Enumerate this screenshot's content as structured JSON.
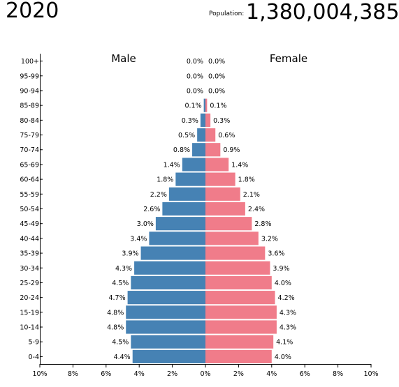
{
  "header": {
    "year": "2020",
    "population_label": "Population:",
    "population_value": "1,380,004,385"
  },
  "colors": {
    "male": "#4682b4",
    "female": "#f07c8a",
    "axis": "#000000"
  },
  "chart_data": {
    "type": "bar",
    "orientation": "horizontal",
    "subtype": "population-pyramid",
    "categories": [
      "100+",
      "95-99",
      "90-94",
      "85-89",
      "80-84",
      "75-79",
      "70-74",
      "65-69",
      "60-64",
      "55-59",
      "50-54",
      "45-49",
      "40-44",
      "35-39",
      "30-34",
      "25-29",
      "20-24",
      "15-19",
      "10-14",
      "5-9",
      "0-4"
    ],
    "series": [
      {
        "name": "Male",
        "values": [
          0.0,
          0.0,
          0.0,
          0.1,
          0.3,
          0.5,
          0.8,
          1.4,
          1.8,
          2.2,
          2.6,
          3.0,
          3.4,
          3.9,
          4.3,
          4.5,
          4.7,
          4.8,
          4.8,
          4.5,
          4.4
        ],
        "labels": [
          "0.0%",
          "0.0%",
          "0.0%",
          "0.1%",
          "0.3%",
          "0.5%",
          "0.8%",
          "1.4%",
          "1.8%",
          "2.2%",
          "2.6%",
          "3.0%",
          "3.4%",
          "3.9%",
          "4.3%",
          "4.5%",
          "4.7%",
          "4.8%",
          "4.8%",
          "4.5%",
          "4.4%"
        ]
      },
      {
        "name": "Female",
        "values": [
          0.0,
          0.0,
          0.0,
          0.1,
          0.3,
          0.6,
          0.9,
          1.4,
          1.8,
          2.1,
          2.4,
          2.8,
          3.2,
          3.6,
          3.9,
          4.0,
          4.2,
          4.3,
          4.3,
          4.1,
          4.0
        ],
        "labels": [
          "0.0%",
          "0.0%",
          "0.0%",
          "0.1%",
          "0.3%",
          "0.6%",
          "0.9%",
          "1.4%",
          "1.8%",
          "2.1%",
          "2.4%",
          "2.8%",
          "3.2%",
          "3.6%",
          "3.9%",
          "4.0%",
          "4.2%",
          "4.3%",
          "4.3%",
          "4.1%",
          "4.0%"
        ]
      }
    ],
    "xlim": [
      -10,
      10
    ],
    "xticks": [
      -10,
      -8,
      -6,
      -4,
      -2,
      0,
      2,
      4,
      6,
      8,
      10
    ],
    "xtick_labels": [
      "10%",
      "8%",
      "6%",
      "4%",
      "2%",
      "0%",
      "2%",
      "4%",
      "6%",
      "8%",
      "10%"
    ],
    "grid": false,
    "legend": "none"
  }
}
